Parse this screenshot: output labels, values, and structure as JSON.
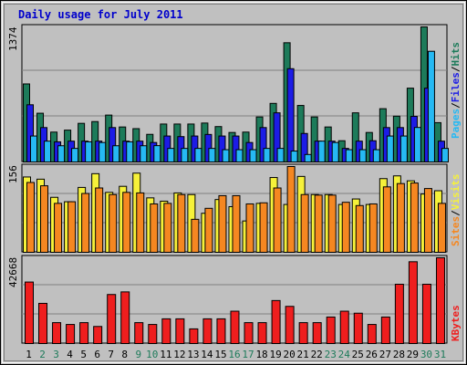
{
  "chart_data": [
    {
      "type": "bar",
      "title": "Daily usage for July 2011",
      "categories": [
        "1",
        "2",
        "3",
        "4",
        "5",
        "6",
        "7",
        "8",
        "9",
        "10",
        "11",
        "12",
        "13",
        "14",
        "15",
        "16",
        "17",
        "18",
        "19",
        "20",
        "21",
        "22",
        "23",
        "24",
        "25",
        "26",
        "27",
        "28",
        "29",
        "30",
        "31"
      ],
      "weekend_days": [
        "2",
        "3",
        "9",
        "10",
        "16",
        "17",
        "23",
        "24",
        "30",
        "31"
      ],
      "ylabel_max": "1374",
      "series": [
        {
          "name": "Hits",
          "color": "#1d7b5a",
          "values": [
            794,
            496,
            304,
            324,
            393,
            411,
            477,
            356,
            339,
            281,
            386,
            386,
            386,
            396,
            360,
            300,
            304,
            458,
            596,
            1213,
            575,
            458,
            356,
            216,
            500,
            300,
            542,
            466,
            751,
            1374,
            400
          ]
        },
        {
          "name": "Files",
          "color": "#1c1ce6",
          "values": [
            582,
            350,
            205,
            212,
            212,
            212,
            350,
            212,
            212,
            198,
            264,
            258,
            264,
            280,
            264,
            264,
            198,
            350,
            500,
            949,
            290,
            212,
            212,
            138,
            212,
            216,
            350,
            350,
            464,
            751,
            212
          ]
        },
        {
          "name": "Pages",
          "color": "#26b9f3",
          "values": [
            264,
            212,
            165,
            138,
            205,
            198,
            165,
            205,
            165,
            166,
            138,
            138,
            138,
            138,
            125,
            125,
            125,
            138,
            138,
            111,
            76,
            212,
            198,
            125,
            125,
            125,
            264,
            264,
            351,
            1126,
            138
          ]
        }
      ],
      "legend": [
        "Pages",
        "Files",
        "Hits"
      ]
    },
    {
      "type": "bar",
      "ylabel_max": "156",
      "series": [
        {
          "name": "Visits",
          "color": "#f6f13a",
          "values": [
            137,
            133,
            100,
            92,
            118,
            143,
            109,
            120,
            144,
            99,
            93,
            108,
            105,
            71,
            96,
            83,
            57,
            89,
            136,
            87,
            138,
            105,
            105,
            87,
            97,
            87,
            134,
            139,
            130,
            106,
            112
          ]
        },
        {
          "name": "Sites",
          "color": "#f58721",
          "values": [
            127,
            121,
            89,
            92,
            107,
            117,
            105,
            109,
            108,
            88,
            89,
            105,
            60,
            80,
            103,
            103,
            88,
            90,
            117,
            156,
            105,
            104,
            104,
            91,
            85,
            88,
            119,
            125,
            126,
            116,
            89
          ]
        }
      ],
      "legend": [
        "Sites",
        "Visits"
      ]
    },
    {
      "type": "bar",
      "ylabel_max": "42668",
      "series": [
        {
          "name": "KBytes",
          "color": "#ef1e1e",
          "values": [
            30600,
            20000,
            10400,
            9500,
            10400,
            8500,
            24400,
            25700,
            10400,
            9500,
            12300,
            12300,
            7300,
            12300,
            12300,
            16100,
            10400,
            10400,
            21400,
            18500,
            10400,
            10400,
            13200,
            16100,
            15100,
            9500,
            13200,
            29500,
            40700,
            29500,
            42668
          ]
        }
      ],
      "legend": [
        "KBytes"
      ]
    }
  ],
  "colors": {
    "background": "#c0c0c0",
    "title": "#0000cc",
    "weekday_label": "#000000",
    "weekend_label": "#1d7b5a"
  }
}
